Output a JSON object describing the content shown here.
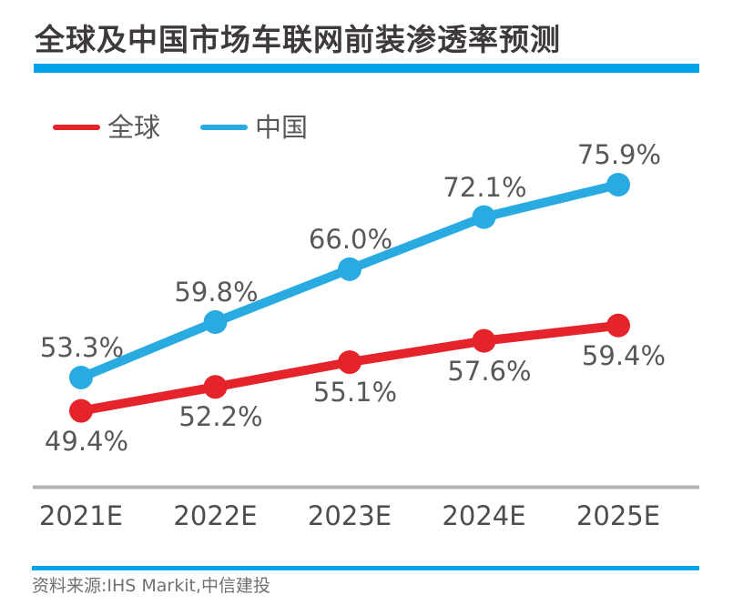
{
  "title": "全球及中国市场车联网前装渗透率预测",
  "source": "资料来源:IHS Markit,中信建投",
  "colors": {
    "accent_bar": "#00A2E9",
    "axis_line": "#B3B3B3",
    "title_text": "#3E3A39",
    "label_text": "#595757",
    "axis_text": "#4D4D4D",
    "source_text": "#727171"
  },
  "chart_data": {
    "type": "line",
    "title": "全球及中国市场车联网前装渗透率预测",
    "categories": [
      "2021E",
      "2022E",
      "2023E",
      "2024E",
      "2025E"
    ],
    "series": [
      {
        "name": "全球",
        "color": "#E5232B",
        "values": [
          49.4,
          52.2,
          55.1,
          57.6,
          59.4
        ],
        "label_position": "below"
      },
      {
        "name": "中国",
        "color": "#29ABE2",
        "values": [
          53.3,
          59.8,
          66.0,
          72.1,
          75.9
        ],
        "label_position": "above"
      }
    ],
    "value_suffix": "%",
    "ylim": [
      45,
      80
    ],
    "grid": false,
    "y_axis_visible": false,
    "legend_position": "top-left",
    "markers": true
  }
}
